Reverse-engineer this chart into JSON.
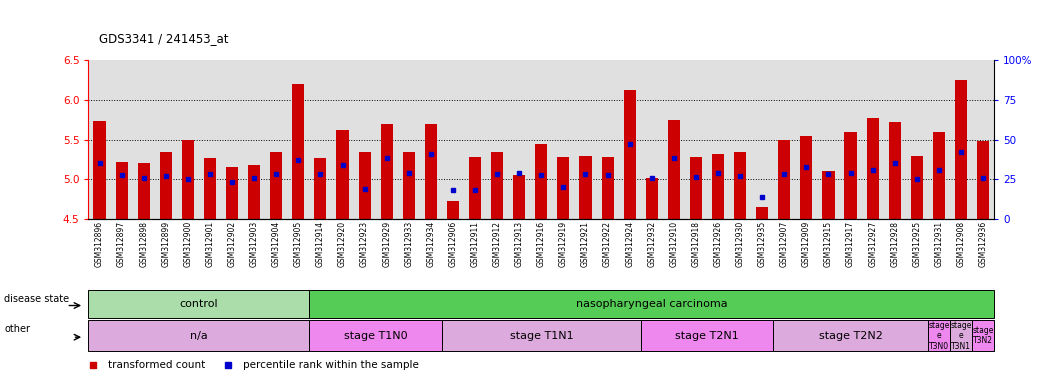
{
  "title": "GDS3341 / 241453_at",
  "samples": [
    "GSM312896",
    "GSM312897",
    "GSM312898",
    "GSM312899",
    "GSM312900",
    "GSM312901",
    "GSM312902",
    "GSM312903",
    "GSM312904",
    "GSM312905",
    "GSM312914",
    "GSM312920",
    "GSM312923",
    "GSM312929",
    "GSM312933",
    "GSM312934",
    "GSM312906",
    "GSM312911",
    "GSM312912",
    "GSM312913",
    "GSM312916",
    "GSM312919",
    "GSM312921",
    "GSM312922",
    "GSM312924",
    "GSM312932",
    "GSM312910",
    "GSM312918",
    "GSM312926",
    "GSM312930",
    "GSM312935",
    "GSM312907",
    "GSM312909",
    "GSM312915",
    "GSM312917",
    "GSM312927",
    "GSM312928",
    "GSM312925",
    "GSM312931",
    "GSM312908",
    "GSM312936"
  ],
  "bar_values": [
    5.73,
    5.22,
    5.2,
    5.35,
    5.5,
    5.27,
    5.15,
    5.18,
    5.35,
    6.2,
    5.27,
    5.62,
    5.35,
    5.69,
    5.35,
    5.7,
    4.73,
    5.28,
    5.35,
    5.06,
    5.45,
    5.28,
    5.3,
    5.28,
    6.12,
    5.02,
    5.75,
    5.28,
    5.32,
    5.35,
    4.65,
    5.5,
    5.55,
    5.1,
    5.6,
    5.77,
    5.72,
    5.3,
    5.6,
    6.25,
    5.48
  ],
  "percentile_values": [
    5.2,
    5.05,
    5.02,
    5.04,
    5.0,
    5.07,
    4.97,
    5.02,
    5.07,
    5.25,
    5.07,
    5.18,
    4.88,
    5.27,
    5.08,
    5.32,
    4.87,
    4.87,
    5.07,
    5.08,
    5.05,
    4.9,
    5.07,
    5.06,
    5.45,
    5.02,
    5.27,
    5.03,
    5.08,
    5.04,
    4.78,
    5.07,
    5.15,
    5.07,
    5.08,
    5.12,
    5.2,
    5.0,
    5.12,
    5.35,
    5.02
  ],
  "ylim_min": 4.5,
  "ylim_max": 6.5,
  "yticks_left": [
    4.5,
    5.0,
    5.5,
    6.0,
    6.5
  ],
  "yticks_right": [
    0,
    25,
    50,
    75,
    100
  ],
  "bar_color": "#cc0000",
  "dot_color": "#0000cc",
  "background_color": "#ffffff",
  "bar_bg_color": "#e0e0e0",
  "disease_state_groups": [
    {
      "label": "control",
      "start": 0,
      "end": 10,
      "color": "#aaddaa"
    },
    {
      "label": "nasopharyngeal carcinoma",
      "start": 10,
      "end": 41,
      "color": "#55cc55"
    }
  ],
  "other_groups": [
    {
      "label": "n/a",
      "start": 0,
      "end": 10,
      "color": "#ddaadd"
    },
    {
      "label": "stage T1N0",
      "start": 10,
      "end": 16,
      "color": "#ee88ee"
    },
    {
      "label": "stage T1N1",
      "start": 16,
      "end": 25,
      "color": "#ddaadd"
    },
    {
      "label": "stage T2N1",
      "start": 25,
      "end": 31,
      "color": "#ee88ee"
    },
    {
      "label": "stage T2N2",
      "start": 31,
      "end": 38,
      "color": "#ddaadd"
    },
    {
      "label": "stage\ne\nT3N0",
      "start": 38,
      "end": 39,
      "color": "#ee88ee"
    },
    {
      "label": "stage\ne\nT3N1",
      "start": 39,
      "end": 40,
      "color": "#ddaadd"
    },
    {
      "label": "stage\nT3N2",
      "start": 40,
      "end": 41,
      "color": "#ee88ee"
    }
  ],
  "legend_items": [
    {
      "label": "transformed count",
      "color": "#cc0000"
    },
    {
      "label": "percentile rank within the sample",
      "color": "#0000cc"
    }
  ]
}
